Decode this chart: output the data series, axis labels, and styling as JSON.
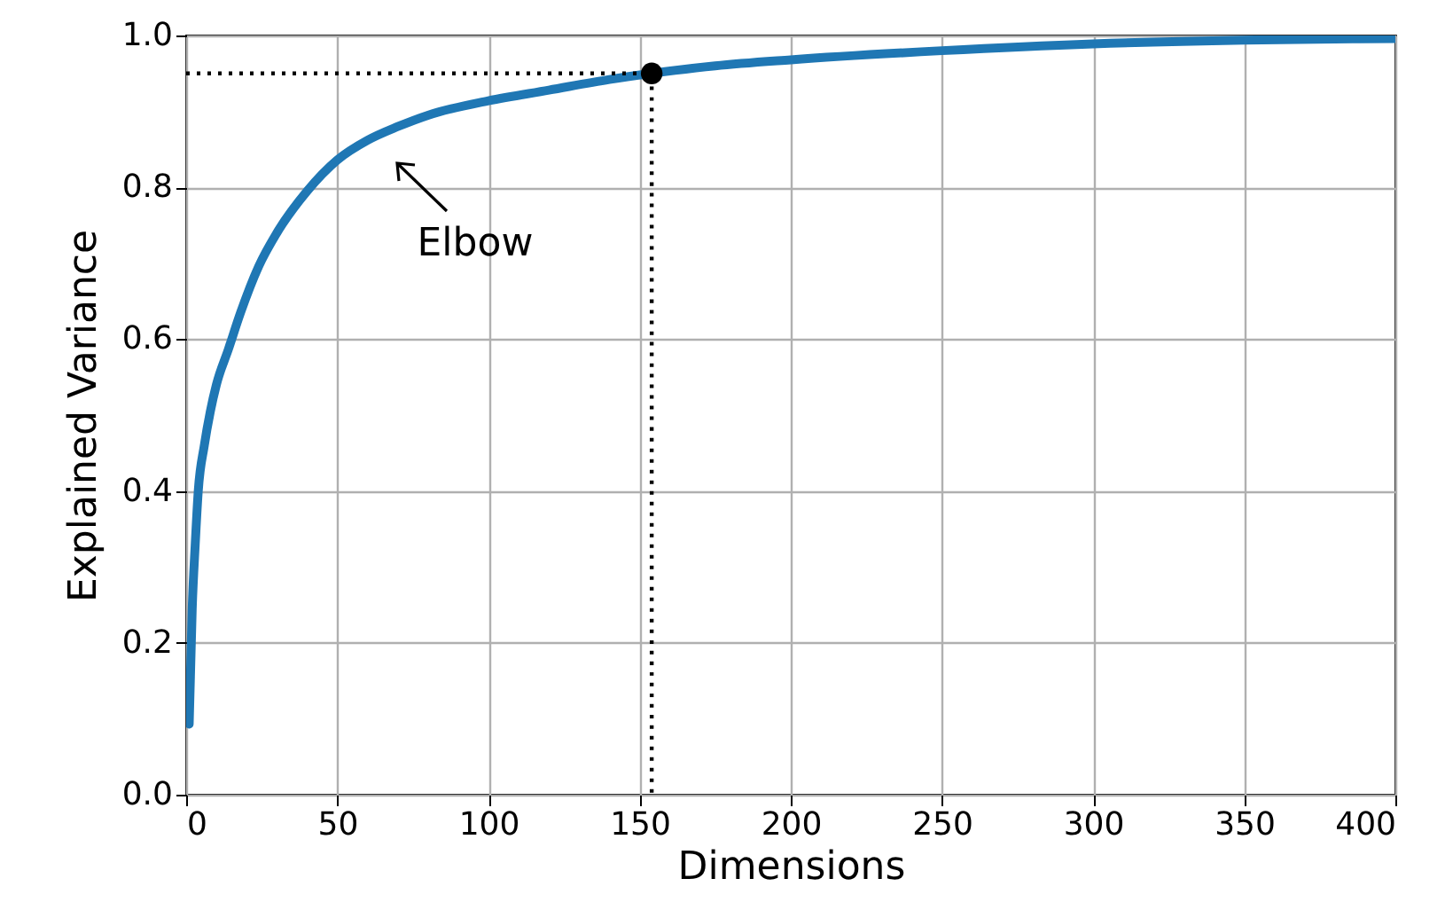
{
  "chart_data": {
    "type": "line",
    "xlabel": "Dimensions",
    "ylabel": "Explained Variance",
    "xlim": [
      0,
      400
    ],
    "ylim": [
      0,
      1
    ],
    "xticks": [
      0,
      50,
      100,
      150,
      200,
      250,
      300,
      350,
      400
    ],
    "yticks": [
      {
        "value": 0,
        "label": "0.0"
      },
      {
        "value": 0.2,
        "label": "0.2"
      },
      {
        "value": 0.4,
        "label": "0.4"
      },
      {
        "value": 0.6,
        "label": "0.6"
      },
      {
        "value": 0.8,
        "label": "0.8"
      },
      {
        "value": 1,
        "label": "1.0"
      }
    ],
    "grid": true,
    "annotations": [
      "Elbow"
    ],
    "series": [
      {
        "color": "#1f77b4",
        "line_style": "solid",
        "x": [
          1,
          2,
          3,
          4,
          6,
          8,
          10,
          14,
          18,
          24,
          30,
          40,
          50,
          60,
          70,
          80,
          100,
          120,
          140,
          154,
          175,
          200,
          250,
          300,
          350,
          400
        ],
        "values": [
          0.093,
          0.245,
          0.33,
          0.4,
          0.46,
          0.505,
          0.54,
          0.587,
          0.635,
          0.696,
          0.74,
          0.795,
          0.836,
          0.862,
          0.88,
          0.895,
          0.914,
          0.928,
          0.942,
          0.95,
          0.96,
          0.968,
          0.98,
          0.989,
          0.994,
          0.996
        ]
      },
      {
        "type": "line",
        "color": "#000000",
        "line_style": "dotted",
        "x": [
          0,
          154,
          154
        ],
        "values": [
          0.95,
          0.95,
          0
        ]
      },
      {
        "type": "scatter",
        "color": "#000000",
        "marker": "circle",
        "x": [
          154
        ],
        "values": [
          0.95
        ]
      }
    ]
  }
}
